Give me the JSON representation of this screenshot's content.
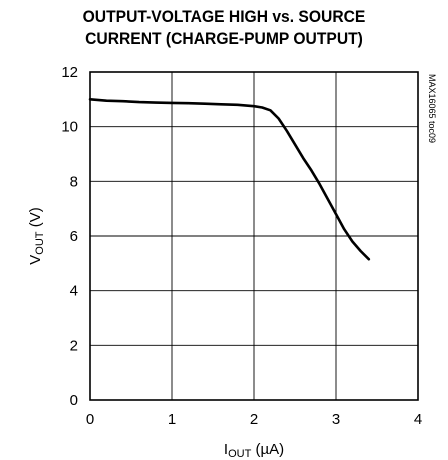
{
  "chart_data": {
    "type": "line",
    "title_lines": [
      "OUTPUT-VOLTAGE HIGH vs. SOURCE",
      "CURRENT (CHARGE-PUMP OUTPUT)"
    ],
    "xlabel": {
      "main": "I",
      "sub": "OUT",
      "unit": " (µA)"
    },
    "ylabel": {
      "main": "V",
      "sub": "OUT",
      "unit": " (V)"
    },
    "annotation": "MAX16065 toc09",
    "xlim": [
      0,
      4
    ],
    "ylim": [
      0,
      12
    ],
    "xticks": [
      "0",
      "1",
      "2",
      "3",
      "4"
    ],
    "yticks": [
      "0",
      "2",
      "4",
      "6",
      "8",
      "10",
      "12"
    ],
    "grid": true,
    "series": [
      {
        "x": [
          0,
          0.2,
          0.4,
          0.6,
          0.8,
          1.0,
          1.2,
          1.4,
          1.6,
          1.8,
          2.0,
          2.1,
          2.2,
          2.3,
          2.4,
          2.5,
          2.6,
          2.7,
          2.8,
          2.9,
          3.0,
          3.1,
          3.2,
          3.3,
          3.4
        ],
        "y": [
          11.0,
          10.95,
          10.93,
          10.9,
          10.88,
          10.87,
          10.86,
          10.84,
          10.82,
          10.8,
          10.75,
          10.7,
          10.6,
          10.3,
          9.85,
          9.35,
          8.85,
          8.4,
          7.9,
          7.35,
          6.8,
          6.25,
          5.8,
          5.45,
          5.15
        ]
      }
    ]
  }
}
